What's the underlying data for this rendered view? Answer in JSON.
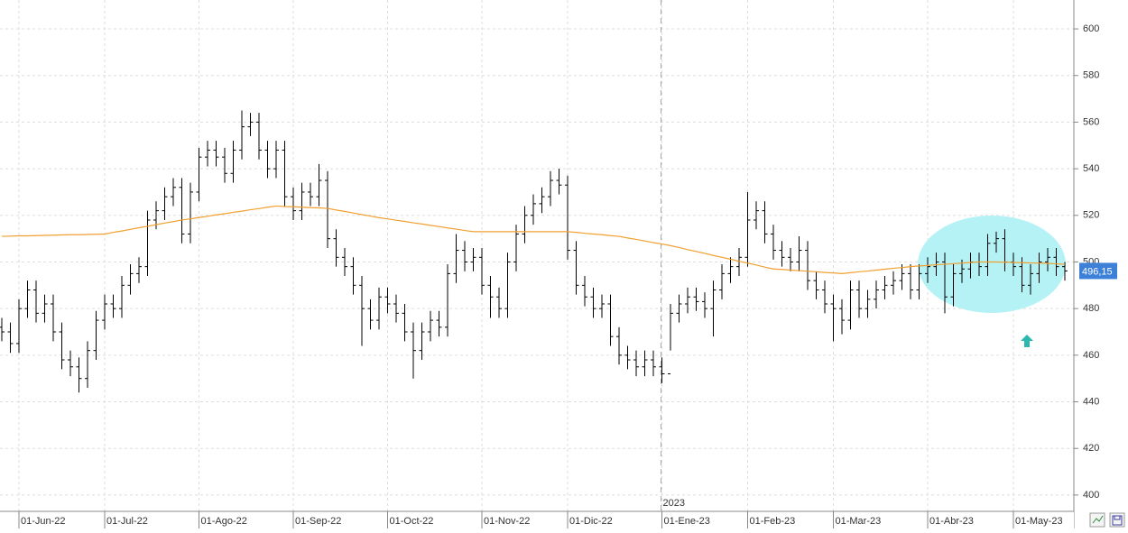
{
  "chart_data": {
    "type": "ohlc",
    "categories": [
      null,
      null,
      "01-Jun-22",
      null,
      null,
      null,
      null,
      null,
      null,
      null,
      null,
      null,
      "01-Jul-22",
      null,
      null,
      null,
      null,
      null,
      null,
      null,
      null,
      null,
      null,
      "01-Ago-22",
      null,
      null,
      null,
      null,
      null,
      null,
      null,
      null,
      null,
      null,
      "01-Sep-22",
      null,
      null,
      null,
      null,
      null,
      null,
      null,
      null,
      null,
      null,
      "01-Oct-22",
      null,
      null,
      null,
      null,
      null,
      null,
      null,
      null,
      null,
      null,
      "01-Nov-22",
      null,
      null,
      null,
      null,
      null,
      null,
      null,
      null,
      null,
      "01-Dic-22",
      null,
      null,
      null,
      null,
      null,
      null,
      null,
      null,
      null,
      null,
      "01-Ene-23",
      null,
      null,
      null,
      null,
      null,
      null,
      null,
      null,
      null,
      "01-Feb-23",
      null,
      null,
      null,
      null,
      null,
      null,
      null,
      null,
      null,
      "01-Mar-23",
      null,
      null,
      null,
      null,
      null,
      null,
      null,
      null,
      null,
      null,
      "01-Abr-23",
      null,
      null,
      null,
      null,
      null,
      null,
      null,
      null,
      null,
      "01-May-23",
      null,
      null,
      null,
      null,
      null,
      null
    ],
    "ohlc": {
      "color": "#000000",
      "open": [
        472,
        470,
        465,
        480,
        488,
        478,
        482,
        470,
        458,
        455,
        450,
        462,
        475,
        482,
        480,
        490,
        495,
        498,
        518,
        522,
        528,
        532,
        512,
        530,
        545,
        548,
        545,
        538,
        548,
        558,
        560,
        548,
        540,
        548,
        528,
        522,
        530,
        528,
        535,
        510,
        502,
        498,
        490,
        480,
        475,
        485,
        482,
        478,
        470,
        462,
        470,
        475,
        472,
        495,
        505,
        500,
        502,
        490,
        485,
        480,
        500,
        512,
        520,
        525,
        528,
        535,
        533,
        505,
        490,
        485,
        480,
        482,
        468,
        460,
        458,
        455,
        458,
        455,
        452,
        478,
        482,
        485,
        483,
        480,
        488,
        495,
        498,
        502,
        518,
        522,
        512,
        505,
        502,
        500,
        505,
        492,
        488,
        482,
        480,
        475,
        488,
        480,
        484,
        488,
        490,
        492,
        495,
        488,
        495,
        498,
        500,
        485,
        495,
        497,
        500,
        498,
        508,
        510,
        500,
        498,
        490,
        495,
        500,
        502,
        498
      ],
      "high": [
        476,
        474,
        484,
        492,
        492,
        486,
        486,
        474,
        462,
        459,
        466,
        479,
        486,
        486,
        494,
        499,
        502,
        522,
        526,
        532,
        536,
        536,
        534,
        549,
        552,
        552,
        549,
        552,
        565,
        564,
        564,
        552,
        552,
        552,
        532,
        534,
        534,
        542,
        539,
        514,
        506,
        502,
        494,
        484,
        489,
        489,
        486,
        482,
        474,
        474,
        479,
        479,
        499,
        512,
        509,
        506,
        506,
        494,
        489,
        504,
        516,
        524,
        529,
        532,
        539,
        540,
        537,
        509,
        494,
        489,
        486,
        486,
        472,
        464,
        462,
        462,
        462,
        459,
        482,
        486,
        489,
        489,
        487,
        492,
        499,
        502,
        506,
        530,
        526,
        526,
        516,
        509,
        506,
        511,
        509,
        496,
        492,
        486,
        484,
        492,
        492,
        488,
        492,
        494,
        496,
        499,
        499,
        499,
        502,
        504,
        504,
        499,
        501,
        504,
        504,
        512,
        513,
        514,
        504,
        502,
        499,
        504,
        506,
        506,
        500
      ],
      "low": [
        466,
        461,
        461,
        476,
        474,
        474,
        466,
        454,
        451,
        444,
        446,
        458,
        471,
        476,
        476,
        486,
        491,
        494,
        514,
        518,
        524,
        508,
        508,
        526,
        541,
        541,
        534,
        534,
        544,
        554,
        544,
        536,
        536,
        524,
        518,
        518,
        524,
        524,
        506,
        498,
        494,
        486,
        464,
        471,
        471,
        478,
        474,
        466,
        450,
        458,
        466,
        468,
        468,
        491,
        496,
        496,
        486,
        476,
        476,
        476,
        496,
        508,
        516,
        521,
        524,
        529,
        501,
        486,
        481,
        476,
        476,
        464,
        456,
        454,
        451,
        451,
        451,
        448,
        462,
        474,
        478,
        479,
        476,
        468,
        484,
        491,
        494,
        498,
        514,
        508,
        501,
        498,
        496,
        496,
        488,
        484,
        478,
        466,
        469,
        471,
        476,
        476,
        480,
        484,
        486,
        488,
        484,
        484,
        491,
        494,
        478,
        481,
        491,
        493,
        494,
        494,
        504,
        496,
        494,
        487,
        486,
        491,
        496,
        494,
        492
      ],
      "close": [
        470,
        465,
        480,
        488,
        478,
        482,
        470,
        458,
        455,
        450,
        462,
        475,
        482,
        480,
        490,
        495,
        498,
        518,
        522,
        528,
        532,
        512,
        530,
        545,
        548,
        545,
        538,
        548,
        558,
        560,
        548,
        540,
        548,
        528,
        522,
        530,
        528,
        535,
        510,
        502,
        498,
        490,
        480,
        475,
        485,
        482,
        478,
        470,
        462,
        470,
        475,
        472,
        495,
        505,
        500,
        502,
        490,
        485,
        480,
        500,
        512,
        520,
        525,
        528,
        535,
        533,
        505,
        490,
        485,
        480,
        482,
        468,
        460,
        458,
        455,
        458,
        455,
        452,
        478,
        482,
        485,
        483,
        480,
        488,
        495,
        498,
        502,
        518,
        522,
        512,
        505,
        502,
        500,
        505,
        492,
        488,
        482,
        480,
        475,
        488,
        480,
        484,
        488,
        490,
        492,
        495,
        488,
        495,
        498,
        500,
        485,
        495,
        497,
        500,
        498,
        508,
        510,
        500,
        498,
        490,
        495,
        500,
        502,
        498,
        496.15
      ]
    },
    "moving_average": {
      "color": "#f0a030",
      "values": [
        511.0,
        511.1,
        511.2,
        511.2,
        511.3,
        511.4,
        511.5,
        511.6,
        511.7,
        511.7,
        511.8,
        511.9,
        512.0,
        512.7,
        513.3,
        514.0,
        514.7,
        515.3,
        516.0,
        516.7,
        517.3,
        518.0,
        518.5,
        519.1,
        519.6,
        520.2,
        520.7,
        521.3,
        521.8,
        522.4,
        522.9,
        523.5,
        524.0,
        523.8,
        523.7,
        523.5,
        523.3,
        523.2,
        523.0,
        522.3,
        521.7,
        521.0,
        520.3,
        519.7,
        519.0,
        518.5,
        517.9,
        517.4,
        516.8,
        516.3,
        515.7,
        515.2,
        514.6,
        514.1,
        513.5,
        513.0,
        513,
        513,
        513,
        513,
        513,
        513,
        513,
        513,
        513,
        513,
        513,
        512.7,
        512.3,
        512.0,
        511.7,
        511.3,
        511.0,
        510.3,
        509.7,
        509.0,
        508.3,
        507.7,
        507.0,
        506.2,
        505.3,
        504.5,
        503.7,
        502.8,
        502.0,
        501.2,
        500.3,
        499.5,
        498.7,
        497.8,
        497.0,
        496.8,
        496.5,
        496.3,
        496.0,
        495.8,
        495.5,
        495.3,
        495.0,
        495.4,
        495.8,
        496.1,
        496.5,
        496.9,
        497.3,
        497.6,
        498.0,
        498.3,
        498.5,
        498.8,
        499.0,
        499.3,
        499.5,
        499.8,
        500.0,
        500,
        500,
        499.9,
        499.8,
        499.7,
        499.6,
        499.5,
        499.4,
        499.2,
        499.0
      ]
    },
    "ylim": [
      393,
      612.4
    ],
    "yticks": [
      400,
      420,
      440,
      460,
      480,
      500,
      520,
      540,
      560,
      580,
      600
    ],
    "grid": true,
    "year_marker": "2023",
    "last_price": {
      "value": 496.15,
      "label": "496,15"
    }
  }
}
